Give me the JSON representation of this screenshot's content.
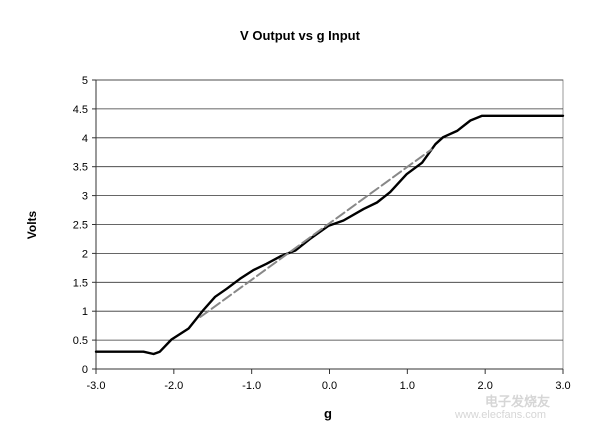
{
  "chart_data": {
    "type": "line",
    "title": "V Output vs g Input",
    "xlabel": "g",
    "ylabel": "Volts",
    "xlim": [
      -3.0,
      3.0
    ],
    "ylim": [
      0,
      5
    ],
    "xticks": [
      "-3.0",
      "-2.0",
      "-1.0",
      "0.0",
      "1.0",
      "2.0",
      "3.0"
    ],
    "xtick_values": [
      -3,
      -2,
      -1,
      0,
      1,
      2,
      3
    ],
    "yticks": [
      "0",
      "0.5",
      "1",
      "1.5",
      "2",
      "2.5",
      "3",
      "3.5",
      "4",
      "4.5",
      "5"
    ],
    "ytick_values": [
      0,
      0.5,
      1,
      1.5,
      2,
      2.5,
      3,
      3.5,
      4,
      4.5,
      5
    ],
    "grid": "horizontal",
    "legend": "none",
    "series": [
      {
        "style": "solid",
        "color": "#000000",
        "x": [
          -3.0,
          -2.39,
          -2.26,
          -2.18,
          -2.03,
          -1.81,
          -1.62,
          -1.47,
          -1.32,
          -1.15,
          -0.98,
          -0.81,
          -0.63,
          -0.44,
          -0.25,
          -0.01,
          0.18,
          0.44,
          0.61,
          0.78,
          0.99,
          1.19,
          1.36,
          1.46,
          1.64,
          1.81,
          1.96,
          3.0
        ],
        "y": [
          0.3,
          0.3,
          0.26,
          0.3,
          0.51,
          0.7,
          1.02,
          1.25,
          1.39,
          1.56,
          1.71,
          1.82,
          1.95,
          2.05,
          2.25,
          2.48,
          2.57,
          2.77,
          2.88,
          3.06,
          3.37,
          3.57,
          3.89,
          4.01,
          4.12,
          4.3,
          4.38,
          4.38
        ]
      },
      {
        "style": "dashed",
        "color": "#888888",
        "x": [
          -1.66,
          1.31
        ],
        "y": [
          0.9,
          3.8
        ]
      }
    ]
  },
  "watermark": {
    "cn": "电子发烧友",
    "url": "www.elecfans.com"
  }
}
